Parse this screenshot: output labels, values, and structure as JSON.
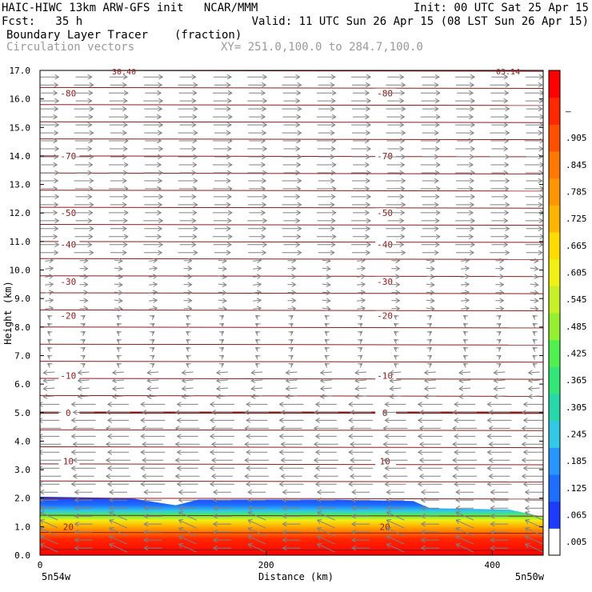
{
  "header": {
    "line1_left": "HAIC-HIWC 13km ARW-GFS init   NCAR/MMM",
    "line1_right": "Init: 00 UTC Sat 25 Apr 15",
    "line2_left": "Fcst:   35 h",
    "line2_right": "Valid: 11 UTC Sun 26 Apr 15 (08 LST Sun 26 Apr 15)",
    "field_name": "Boundary Layer Tracer",
    "field_unit": "(fraction)",
    "vector_name": "Circulation vectors",
    "xy_range": "XY= 251.0,100.0 to 284.7,100.0"
  },
  "colors": {
    "contour": "#8b1a1a",
    "vector": "#808080",
    "frame": "#000000"
  },
  "chart_data": {
    "type": "heatmap",
    "xlabel": "Distance (km)",
    "ylabel": "Height (km)",
    "xlim": [
      0,
      445
    ],
    "ylim": [
      0,
      17
    ],
    "xticks": [
      0,
      200,
      400
    ],
    "yticks": [
      "0.0",
      "1.0",
      "2.0",
      "3.0",
      "4.0",
      "5.0",
      "6.0",
      "7.0",
      "8.0",
      "9.0",
      "10.0",
      "11.0",
      "12.0",
      "13.0",
      "14.0",
      "15.0",
      "16.0",
      "17.0"
    ],
    "left_endpoint": "5n54w",
    "right_endpoint": "5n50w",
    "corner_labels": [
      "30.40",
      "03.14"
    ],
    "colorbar_labels": [
      ".005",
      ".065",
      ".125",
      ".185",
      ".245",
      ".305",
      ".365",
      ".425",
      ".485",
      ".545",
      ".605",
      ".665",
      ".725",
      ".785",
      ".845",
      ".905",
      "–"
    ],
    "colorbar_colors": [
      "#ffffff",
      "#1e3cff",
      "#1e6eff",
      "#2896ff",
      "#32c8e6",
      "#28d7aa",
      "#32e678",
      "#50f050",
      "#96f032",
      "#c8f028",
      "#f0f014",
      "#ffdc00",
      "#ffb400",
      "#ff9600",
      "#ff7800",
      "#ff5000",
      "#ff2800",
      "#ff0000"
    ],
    "contour_labels": [
      {
        "value": "-80",
        "y_km": 16.2
      },
      {
        "value": "-70",
        "y_km": 14.0
      },
      {
        "value": "-50",
        "y_km": 12.0
      },
      {
        "value": "-40",
        "y_km": 10.9
      },
      {
        "value": "-30",
        "y_km": 9.6
      },
      {
        "value": "-20",
        "y_km": 8.4
      },
      {
        "value": "-10",
        "y_km": 6.3
      },
      {
        "value": "0",
        "y_km": 5.0
      },
      {
        "value": "10",
        "y_km": 3.3
      },
      {
        "value": "20",
        "y_km": 1.0
      }
    ],
    "tracer_top_km": [
      {
        "x": 0,
        "top": 2.05
      },
      {
        "x": 80,
        "top": 2.0
      },
      {
        "x": 120,
        "top": 1.75
      },
      {
        "x": 140,
        "top": 1.95
      },
      {
        "x": 260,
        "top": 1.95
      },
      {
        "x": 330,
        "top": 1.9
      },
      {
        "x": 345,
        "top": 1.65
      },
      {
        "x": 415,
        "top": 1.6
      },
      {
        "x": 445,
        "top": 1.35
      }
    ]
  }
}
